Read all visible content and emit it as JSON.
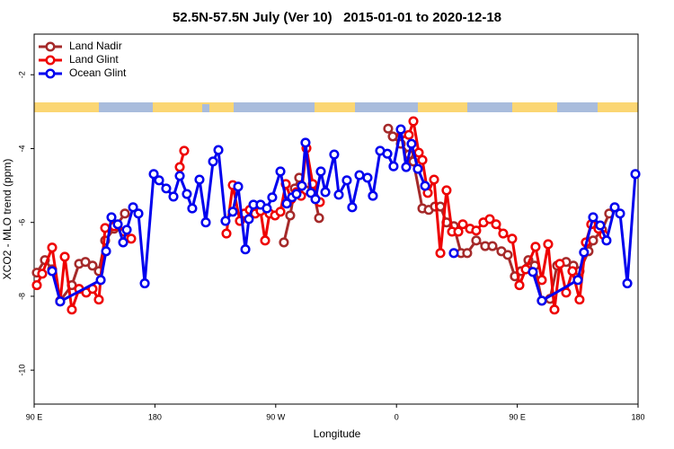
{
  "chart_data": {
    "type": "line",
    "title": "52.5N-57.5N July (Ver 10)   2015-01-01 to 2020-12-18",
    "xlabel": "Longitude",
    "ylabel": "XCO2 - MLO trend (ppm)",
    "xlim": [
      90,
      540
    ],
    "ylim": [
      -10.92,
      -0.9
    ],
    "xticks": [
      {
        "value": 90,
        "label": "90 E"
      },
      {
        "value": 180,
        "label": "180"
      },
      {
        "value": 270,
        "label": "90 W"
      },
      {
        "value": 360,
        "label": "0"
      },
      {
        "value": 450,
        "label": "90 E"
      },
      {
        "value": 540,
        "label": "180"
      }
    ],
    "yticks": [
      -2,
      -4,
      -6,
      -8,
      -10
    ],
    "legend": "top-left",
    "series": [
      {
        "name": "Land Nadir",
        "color": "#a52a2a",
        "x": [
          92.0,
          98.0,
          103.4,
          109.4,
          118.1,
          123.5,
          128.2,
          133.5,
          138.2,
          142.9,
          149.6,
          157.6,
          null,
          276.1,
          280.8,
          284.2,
          287.5,
          292.2,
          297.6,
          302.3,
          null,
          353.8,
          357.2,
          363.2,
          369.2,
          372.6,
          379.3,
          384.0,
          388.6,
          392.7,
          397.3,
          402.7,
          408.1,
          412.7,
          419.4,
          426.1,
          431.5,
          438.2,
          442.9,
          448.2,
          452.9,
          458.3,
          463.0,
          468.3,
          474.4,
          479.7,
          486.4,
          491.8,
          496.4,
          503.1,
          506.5,
          513.2,
          518.5
        ],
        "values": [
          -7.36,
          -7.02,
          -7.27,
          -8.12,
          -7.7,
          -7.12,
          -7.07,
          -7.17,
          -7.32,
          -6.49,
          -6.17,
          -5.76,
          null,
          -6.54,
          -5.81,
          -5.08,
          -4.79,
          -5.13,
          -5.08,
          -5.88,
          null,
          -3.46,
          -3.67,
          -3.87,
          -4.16,
          -4.35,
          -5.62,
          -5.66,
          -5.57,
          -5.57,
          -6.0,
          -6.1,
          -6.83,
          -6.83,
          -6.49,
          -6.64,
          -6.64,
          -6.78,
          -6.88,
          -7.46,
          -7.32,
          -7.02,
          -7.17,
          -8.12,
          -8.07,
          -7.17,
          -7.07,
          -7.17,
          -7.32,
          -6.78,
          -6.49,
          -6.2,
          -5.76
        ]
      },
      {
        "name": "Land Glint",
        "color": "#ee0000",
        "x": [
          92.0,
          96.0,
          103.4,
          109.4,
          112.8,
          118.1,
          123.5,
          128.8,
          133.5,
          138.2,
          142.9,
          149.6,
          157.0,
          162.3,
          null,
          198.5,
          201.8,
          null,
          233.3,
          238.0,
          243.3,
          246.7,
          250.7,
          254.7,
          258.7,
          262.1,
          265.4,
          269.5,
          273.5,
          277.5,
          281.5,
          285.5,
          288.9,
          292.9,
          297.6,
          302.9,
          null,
          363.9,
          369.2,
          372.6,
          376.6,
          379.3,
          383.3,
          388.0,
          392.7,
          397.3,
          401.4,
          406.1,
          409.4,
          414.8,
          419.4,
          424.8,
          429.5,
          434.2,
          439.5,
          446.2,
          451.6,
          456.3,
          463.6,
          468.3,
          473.0,
          477.7,
          481.7,
          486.4,
          491.1,
          496.4,
          501.1,
          505.1,
          510.5,
          514.5
        ],
        "values": [
          -7.7,
          -7.39,
          -6.68,
          -8.14,
          -6.93,
          -8.36,
          -7.8,
          -7.9,
          -7.8,
          -8.09,
          -6.15,
          -6.1,
          -6.25,
          -6.44,
          null,
          -4.5,
          -4.06,
          null,
          -6.3,
          -4.99,
          -5.96,
          -5.76,
          -5.66,
          -5.76,
          -5.69,
          -6.49,
          -5.76,
          -5.81,
          -5.71,
          -4.96,
          -5.37,
          -5.18,
          -5.28,
          -3.99,
          -4.96,
          -5.45,
          null,
          -3.6,
          -3.63,
          -3.26,
          -4.11,
          -4.31,
          -5.2,
          -4.84,
          -6.83,
          -5.13,
          -6.25,
          -6.25,
          -6.05,
          -6.17,
          -6.22,
          -6.0,
          -5.91,
          -6.05,
          -6.3,
          -6.44,
          -7.7,
          -7.27,
          -6.66,
          -7.56,
          -6.59,
          -8.36,
          -7.12,
          -7.9,
          -7.32,
          -8.09,
          -6.54,
          -6.05,
          -6.17,
          -6.34
        ]
      },
      {
        "name": "Ocean Glint",
        "color": "#0000ee",
        "x": [
          103.4,
          109.4,
          139.6,
          143.6,
          147.6,
          152.3,
          156.3,
          159.0,
          163.7,
          167.7,
          172.4,
          179.1,
          183.1,
          188.4,
          193.8,
          198.5,
          203.8,
          207.8,
          213.2,
          217.9,
          223.3,
          227.3,
          232.6,
          238.0,
          242.0,
          247.4,
          250.0,
          253.4,
          258.7,
          263.4,
          267.4,
          273.5,
          278.2,
          282.2,
          285.5,
          289.5,
          292.2,
          296.2,
          299.6,
          303.6,
          307.0,
          313.6,
          317.0,
          323.0,
          327.0,
          332.4,
          338.4,
          342.4,
          347.8,
          353.2,
          357.8,
          363.2,
          367.2,
          371.2,
          375.9,
          381.3,
          null,
          402.7,
          null,
          461.6,
          468.3,
          495.1,
          499.7,
          506.5,
          511.8,
          516.5,
          522.6,
          526.6,
          532.0,
          538.0
        ],
        "values": [
          -7.32,
          -8.14,
          -7.56,
          -6.78,
          -5.86,
          -6.05,
          -6.54,
          -6.2,
          -5.59,
          -5.76,
          -7.65,
          -4.69,
          -4.86,
          -5.08,
          -5.3,
          -4.74,
          -5.23,
          -5.62,
          -4.84,
          -6.0,
          -4.35,
          -4.04,
          -5.96,
          -5.71,
          -5.03,
          -6.73,
          -5.91,
          -5.52,
          -5.52,
          -5.62,
          -5.32,
          -4.62,
          -5.49,
          -5.32,
          -5.23,
          -5.01,
          -3.84,
          -5.2,
          -5.37,
          -4.62,
          -5.18,
          -4.16,
          -5.25,
          -4.86,
          -5.59,
          -4.72,
          -4.79,
          -5.28,
          -4.06,
          -4.14,
          -4.48,
          -3.48,
          -4.5,
          -3.87,
          -4.55,
          -5.01,
          null,
          -6.83,
          null,
          -7.34,
          -8.12,
          -7.56,
          -6.81,
          -5.86,
          -6.08,
          -6.49,
          -5.59,
          -5.76,
          -7.65,
          -4.69
        ]
      }
    ]
  }
}
